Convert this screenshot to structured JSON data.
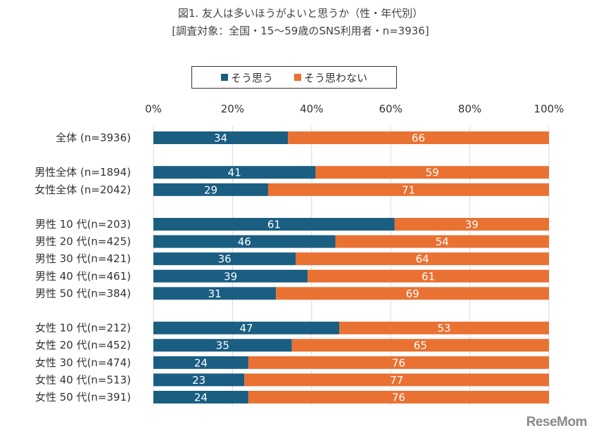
{
  "chart_data": {
    "type": "bar",
    "orientation": "horizontal-stacked-100",
    "title": "図1. 友人は多いほうがよいと思うか（性・年代別）",
    "subtitle": "[調査対象：全国・15～59歳のSNS利用者・n=3936]",
    "xlabel": "",
    "ylabel": "",
    "xlim": [
      0,
      100
    ],
    "x_ticks": [
      "0%",
      "20%",
      "40%",
      "60%",
      "80%",
      "100%"
    ],
    "grid": "vertical",
    "legend_position": "top-center",
    "categories": [
      "全体 (n=3936)",
      "男性全体 (n=1894)",
      "女性全体 (n=2042)",
      "男性 10 代(n=203)",
      "男性 20 代(n=425)",
      "男性 30 代(n=421)",
      "男性 40 代(n=461)",
      "男性 50 代(n=384)",
      "女性 10 代(n=212)",
      "女性 20 代(n=452)",
      "女性 30 代(n=474)",
      "女性 40 代(n=513)",
      "女性 50 代(n=391)"
    ],
    "groups": [
      [
        0
      ],
      [
        1,
        2
      ],
      [
        3,
        4,
        5,
        6,
        7
      ],
      [
        8,
        9,
        10,
        11,
        12
      ]
    ],
    "series": [
      {
        "name": "そう思う",
        "color": "#1a5e82",
        "values": [
          34,
          41,
          29,
          61,
          46,
          36,
          39,
          31,
          47,
          35,
          24,
          23,
          24
        ]
      },
      {
        "name": "そう思わない",
        "color": "#e97132",
        "values": [
          66,
          59,
          71,
          39,
          54,
          64,
          61,
          69,
          53,
          65,
          76,
          77,
          76
        ]
      }
    ]
  },
  "legend": {
    "items": [
      {
        "label": "そう思う",
        "color": "#1a5e82"
      },
      {
        "label": "そう思わない",
        "color": "#e97132"
      }
    ]
  },
  "watermark": {
    "text": "ReseMom"
  }
}
